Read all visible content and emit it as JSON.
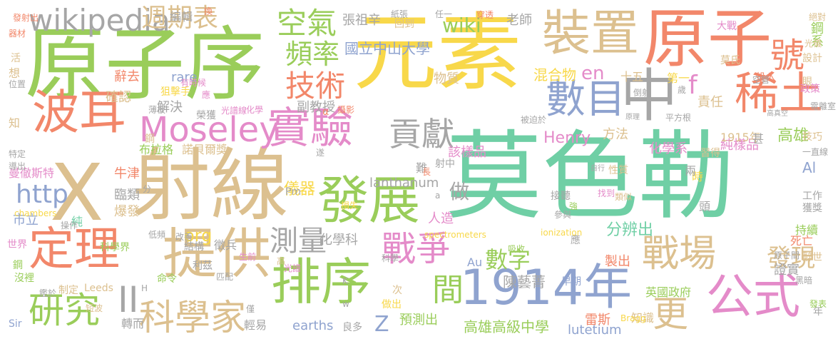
{
  "palette": {
    "green": "#9acd5a",
    "yellow": "#f8d84a",
    "orange": "#f2876a",
    "tan": "#dcc08f",
    "blue": "#8fa3cf",
    "pink": "#e48bc9",
    "teal": "#6fcfa5",
    "gray": "#a6a6a6"
  },
  "words": [
    "元素",
    "莫色勒",
    "原子序",
    "射線",
    "原子",
    "裝置",
    "X",
    "波耳",
    "實驗",
    "發展",
    "提供",
    "排序",
    "1914年",
    "定理",
    "Moseley",
    "數目",
    "中",
    "稀土",
    "公式",
    "戰場",
    "號",
    "研究",
    "科學家",
    "戰爭",
    "技術",
    "頻率",
    "空氣",
    "wikipedia",
    "週期表",
    "貢獻",
    "測量",
    "間",
    "更",
    "發現",
    "數字",
    "http",
    "org",
    "en",
    "II",
    "Z",
    "wiki",
    "做",
    "國立中山大學",
    "物質",
    "混合物",
    "純樣品",
    "Henry",
    "高雄高級中學",
    "lutetium",
    "lanthanum",
    "earths",
    "陳藝菁",
    "儀器",
    "化學科",
    "副教授",
    "雷斯",
    "方法",
    "分辨出",
    "該樣品",
    "化學系",
    "責任",
    "高雄",
    "1915年",
    "證實",
    "製出",
    "人造",
    "預測出",
    "張祖辛",
    "老師",
    "f",
    "十五",
    "確認",
    "解決",
    "rare",
    "辭去",
    "狙擊手",
    "諾貝爾獎",
    "布拉格",
    "牛津",
    "曼徹斯特",
    "臨類",
    "爆發",
    "市立",
    "科學界",
    "Pm",
    "Au",
    "Al",
    "鋼系",
    "莫氏",
    "大戰",
    "第一",
    "投入",
    "政策",
    "技巧",
    "工作",
    "持續",
    "死亡",
    "設計",
    "光儀",
    "原子間",
    "應",
    "早期",
    "英國政府",
    "知識",
    "年",
    "Sir",
    "Leeds",
    "世界",
    "鋼",
    "沒裡",
    "制定",
    "結構",
    "徵兵",
    "輕易",
    "轉而",
    "次",
    "做出",
    "良多",
    "回到",
    "編輯",
    "換",
    "榮獲",
    "射中",
    "難",
    "遂",
    "接聽",
    "參與",
    "頭",
    "時",
    "兩",
    "甚",
    "歲",
    "眼",
    "一直線",
    "自行",
    "獲獎",
    "習得",
    "辭世",
    "特定",
    "導出",
    "想",
    "活",
    "器材",
    "位置",
    "知",
    "純",
    "分",
    "長",
    "性質",
    "類似",
    "找到",
    "吸收",
    "高",
    "光譜",
    "科學",
    "spectrometers",
    "ionization",
    "chambers",
    "Bragg",
    "損失",
    "命令",
    "利茲",
    "匹配",
    "短波",
    "僅",
    "生前",
    "改善",
    "有時候",
    "應",
    "光譜線",
    "化學",
    "攝影",
    "發射出",
    "鋼",
    "紙張",
    "任一",
    "穿透",
    "絕對",
    "平方根",
    "倒射",
    "空管",
    "電離室",
    "高真空",
    "黑暗",
    "發表",
    "原理",
    "被迫於",
    "低頻",
    "操作",
    "鑑於",
    "H",
    "K",
    "w",
    "a",
    "薄板",
    "α",
    "強"
  ],
  "title_hidden": ""
}
